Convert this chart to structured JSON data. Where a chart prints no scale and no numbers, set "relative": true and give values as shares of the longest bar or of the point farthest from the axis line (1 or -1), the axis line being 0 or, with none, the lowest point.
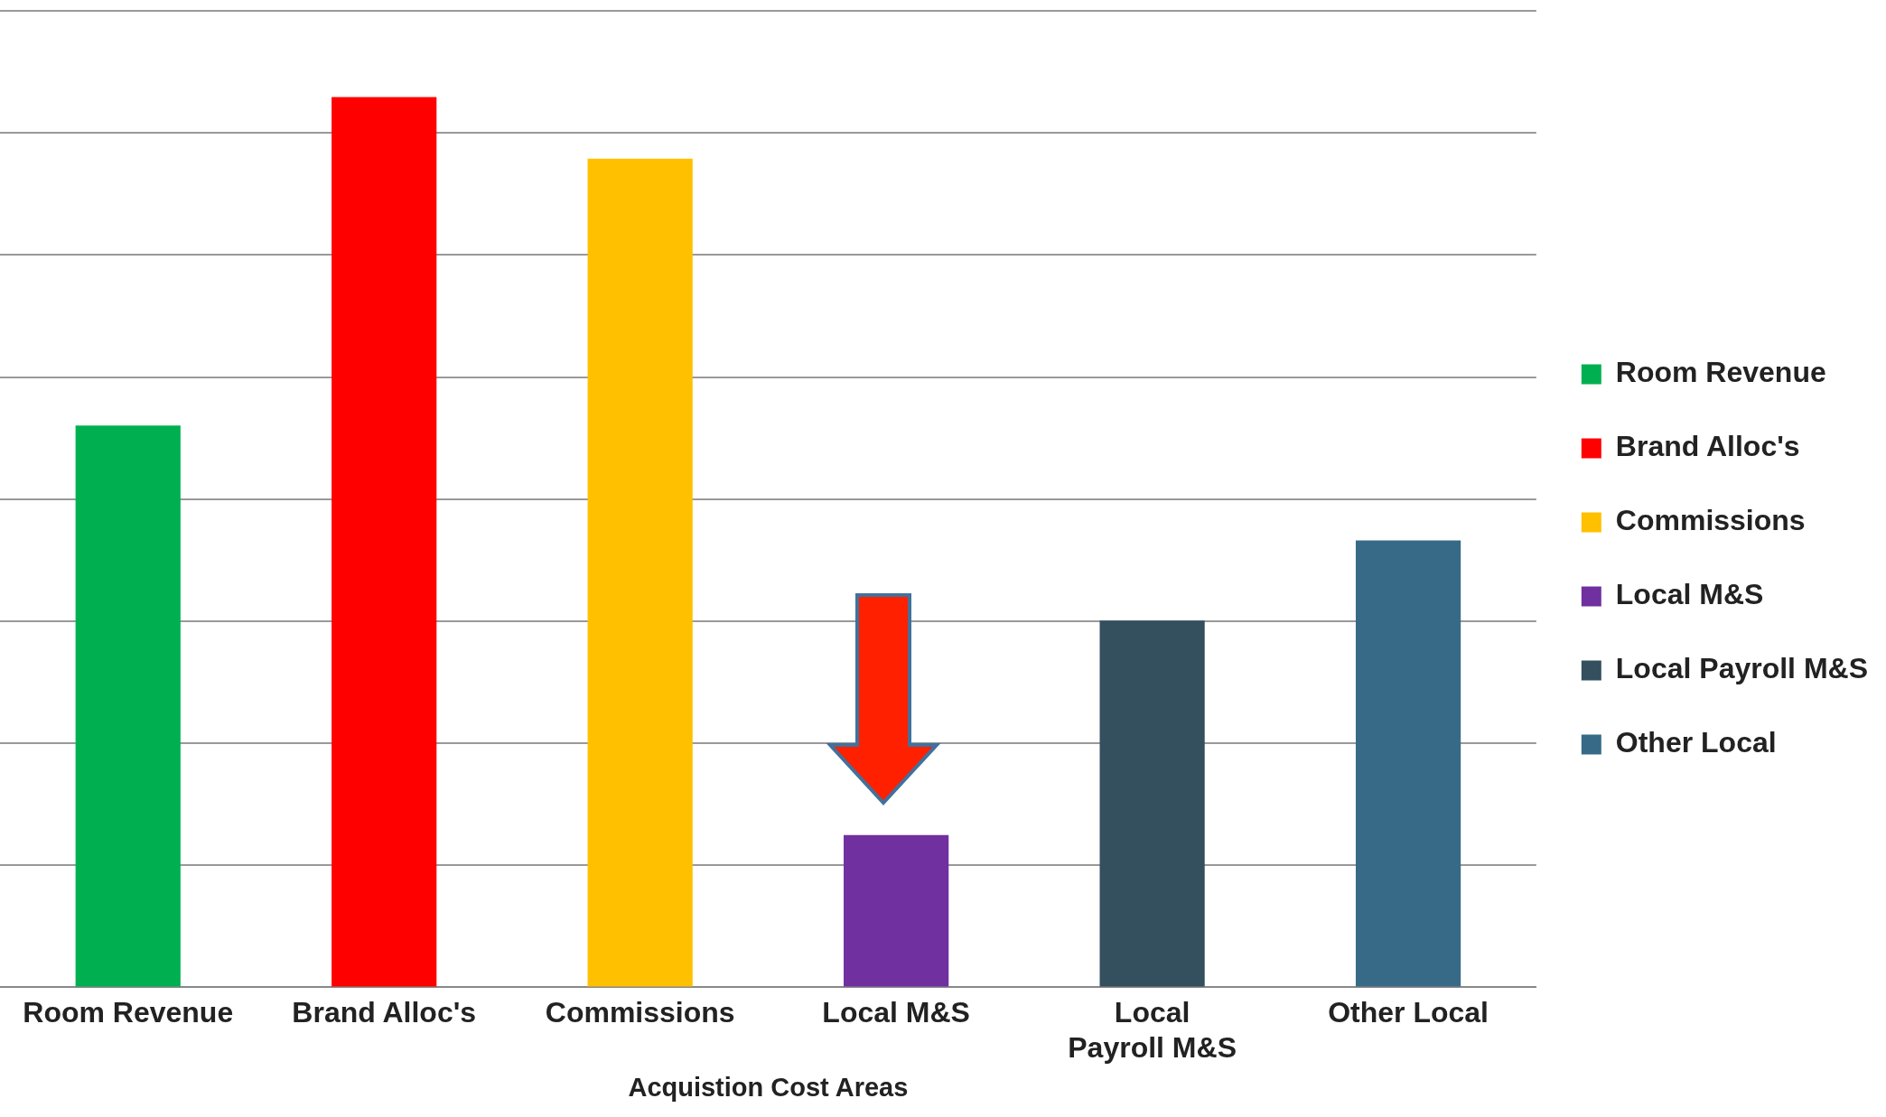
{
  "chart_data": {
    "type": "bar",
    "relative": true,
    "xlabel": "Acquistion Cost Areas",
    "categories": [
      "Room Revenue",
      "Brand Alloc's",
      "Commissions",
      "Local M&S",
      "Local Payroll M&S",
      "Other Local"
    ],
    "series": [
      {
        "name": "Room Revenue",
        "color": "#00b050",
        "values": [
          0.631,
          null,
          null,
          null,
          null,
          null
        ]
      },
      {
        "name": "Brand Alloc's",
        "color": "#ff0000",
        "values": [
          null,
          1,
          null,
          null,
          null,
          null
        ]
      },
      {
        "name": "Commissions",
        "color": "#ffc000",
        "values": [
          null,
          null,
          0.931,
          null,
          null,
          null
        ]
      },
      {
        "name": "Local M&S",
        "color": "#7030a0",
        "values": [
          null,
          null,
          null,
          0.171,
          null,
          null
        ]
      },
      {
        "name": "Local Payroll M&S",
        "color": "#344f5e",
        "values": [
          null,
          null,
          null,
          null,
          0.412,
          null
        ]
      },
      {
        "name": "Other Local",
        "color": "#376a87",
        "values": [
          null,
          null,
          null,
          null,
          null,
          0.502
        ]
      }
    ],
    "grid": "y",
    "legend": "right"
  }
}
